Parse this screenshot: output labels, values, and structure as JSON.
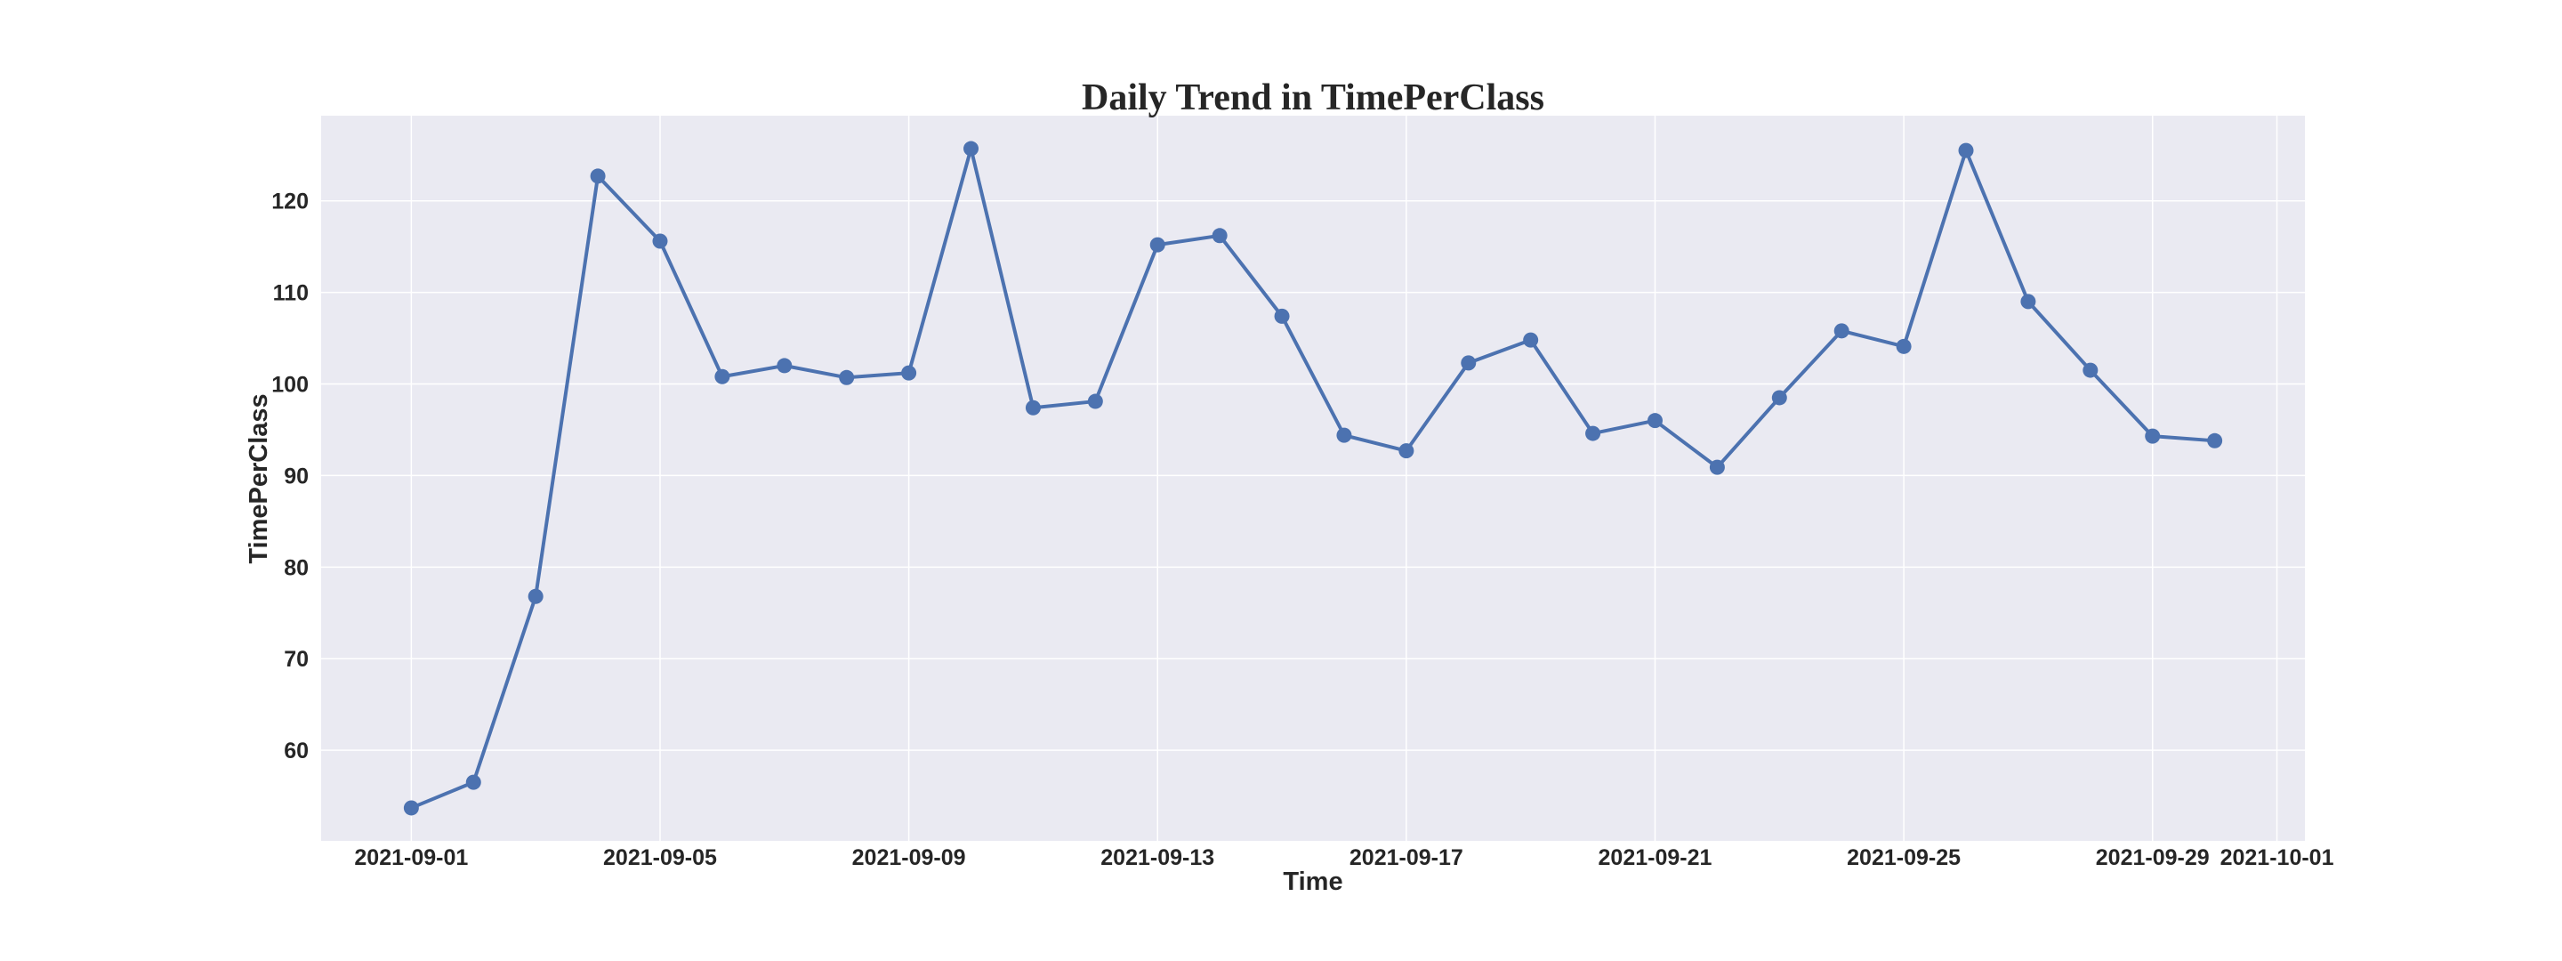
{
  "chart_data": {
    "type": "line",
    "title": "Daily Trend in TimePerClass",
    "xlabel": "Time",
    "ylabel": "TimePerClass",
    "x": [
      "2021-09-01",
      "2021-09-02",
      "2021-09-03",
      "2021-09-04",
      "2021-09-05",
      "2021-09-06",
      "2021-09-07",
      "2021-09-08",
      "2021-09-09",
      "2021-09-10",
      "2021-09-11",
      "2021-09-12",
      "2021-09-13",
      "2021-09-14",
      "2021-09-15",
      "2021-09-16",
      "2021-09-17",
      "2021-09-18",
      "2021-09-19",
      "2021-09-20",
      "2021-09-21",
      "2021-09-22",
      "2021-09-23",
      "2021-09-24",
      "2021-09-25",
      "2021-09-26",
      "2021-09-27",
      "2021-09-28",
      "2021-09-29",
      "2021-09-30"
    ],
    "series": [
      {
        "values": [
          53.7,
          56.5,
          76.8,
          122.7,
          115.6,
          100.8,
          102.0,
          100.7,
          101.2,
          125.7,
          97.4,
          98.1,
          115.2,
          116.2,
          107.4,
          94.4,
          92.7,
          102.3,
          104.8,
          94.6,
          96.0,
          90.9,
          98.5,
          105.8,
          104.1,
          125.5,
          109.0,
          101.5,
          94.3,
          93.8
        ],
        "color": "#4c72b0",
        "marker": "circle"
      }
    ],
    "xticks": [
      "2021-09-01",
      "2021-09-05",
      "2021-09-09",
      "2021-09-13",
      "2021-09-17",
      "2021-09-21",
      "2021-09-25",
      "2021-09-29",
      "2021-10-01"
    ],
    "yticks": [
      60,
      70,
      80,
      90,
      100,
      110,
      120
    ],
    "xlim": [
      "2021-08-30T13:12:00",
      "2021-10-01T10:48:00"
    ],
    "ylim": [
      50.1,
      129.3
    ],
    "grid": true,
    "legend": "none",
    "colors": {
      "plot_background": "#eaeaf2",
      "grid": "#ffffff",
      "text": "#262626"
    }
  }
}
